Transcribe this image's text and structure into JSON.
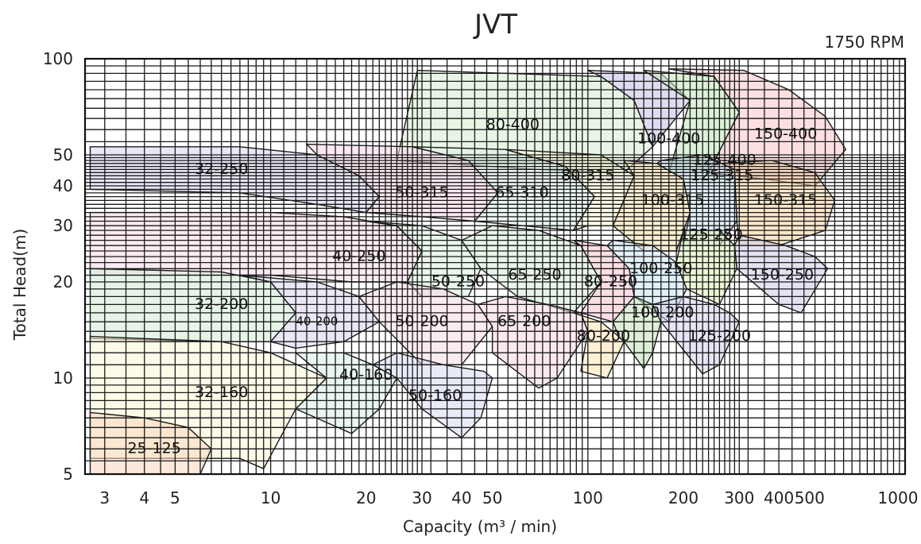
{
  "chart_data": {
    "type": "area",
    "title": "JVT",
    "subtitle": "1750 RPM",
    "xlabel": "Capacity (m³ / min)",
    "ylabel": "Total Head(m)",
    "x_scale": "log",
    "y_scale": "log",
    "xlim": [
      2.6,
      1000
    ],
    "ylim": [
      5,
      100
    ],
    "x_ticks": [
      {
        "value": 3,
        "label": "3"
      },
      {
        "value": 4,
        "label": "4"
      },
      {
        "value": 5,
        "label": "5"
      },
      {
        "value": 10,
        "label": "10"
      },
      {
        "value": 20,
        "label": "20"
      },
      {
        "value": 30,
        "label": "30"
      },
      {
        "value": 40,
        "label": "40"
      },
      {
        "value": 50,
        "label": "50"
      },
      {
        "value": 100,
        "label": "100"
      },
      {
        "value": 200,
        "label": "200"
      },
      {
        "value": 300,
        "label": "300"
      },
      {
        "value": 400,
        "label": "400"
      },
      {
        "value": 500,
        "label": "500"
      },
      {
        "value": 1000,
        "label": "1000"
      }
    ],
    "y_ticks": [
      {
        "value": 5,
        "label": "5"
      },
      {
        "value": 10,
        "label": "10"
      },
      {
        "value": 20,
        "label": "20"
      },
      {
        "value": 30,
        "label": "30"
      },
      {
        "value": 40,
        "label": "40"
      },
      {
        "value": 50,
        "label": "50"
      },
      {
        "value": 100,
        "label": "100"
      }
    ],
    "grid": true,
    "regions": [
      {
        "name": "80-400",
        "color": "#d5ecd0",
        "label_at": [
          58,
          62
        ],
        "polygon": [
          [
            25,
            48
          ],
          [
            29,
            92
          ],
          [
            110,
            88
          ],
          [
            140,
            74
          ],
          [
            160,
            53
          ],
          [
            130,
            44
          ],
          [
            70,
            45
          ]
        ]
      },
      {
        "name": "100-400",
        "color": "#c4bde6",
        "label_at": [
          180,
          56
        ],
        "polygon": [
          [
            100,
            92
          ],
          [
            170,
            90
          ],
          [
            210,
            74
          ],
          [
            160,
            53
          ],
          [
            140,
            74
          ],
          [
            110,
            88
          ]
        ]
      },
      {
        "name": "125-400",
        "color": "#bfe6b8",
        "label_at": [
          270,
          48
        ],
        "polygon": [
          [
            150,
            92
          ],
          [
            250,
            88
          ],
          [
            300,
            68
          ],
          [
            240,
            44
          ],
          [
            180,
            44
          ],
          [
            210,
            74
          ]
        ]
      },
      {
        "name": "150-400",
        "color": "#f9c4c8",
        "label_at": [
          420,
          58
        ],
        "polygon": [
          [
            180,
            93
          ],
          [
            310,
            92
          ],
          [
            430,
            80
          ],
          [
            560,
            66
          ],
          [
            650,
            52
          ],
          [
            520,
            40
          ],
          [
            360,
            42
          ],
          [
            240,
            44
          ],
          [
            300,
            68
          ],
          [
            250,
            88
          ]
        ]
      },
      {
        "name": "32-250",
        "color": "#d5d4ef",
        "label_at": [
          7,
          45
        ],
        "polygon": [
          [
            2.7,
            53
          ],
          [
            8,
            53
          ],
          [
            14,
            50
          ],
          [
            19,
            43
          ],
          [
            22,
            37
          ],
          [
            20,
            33
          ],
          [
            14,
            35
          ],
          [
            8,
            38
          ],
          [
            2.7,
            39
          ]
        ]
      },
      {
        "name": "50-315",
        "color": "#f6d3e6",
        "label_at": [
          30,
          38
        ],
        "polygon": [
          [
            13,
            54
          ],
          [
            28,
            53
          ],
          [
            42,
            48
          ],
          [
            52,
            38
          ],
          [
            44,
            31
          ],
          [
            30,
            32
          ],
          [
            20,
            33
          ],
          [
            22,
            37
          ],
          [
            19,
            43
          ],
          [
            14,
            50
          ]
        ]
      },
      {
        "name": "65-310",
        "color": "#d9efe3",
        "label_at": [
          62,
          38
        ],
        "polygon": [
          [
            28,
            53
          ],
          [
            55,
            52
          ],
          [
            85,
            46
          ],
          [
            105,
            37
          ],
          [
            90,
            29
          ],
          [
            62,
            30
          ],
          [
            44,
            31
          ],
          [
            52,
            38
          ],
          [
            42,
            48
          ]
        ]
      },
      {
        "name": "80-315",
        "color": "#fbf7d4",
        "label_at": [
          100,
          43
        ],
        "polygon": [
          [
            55,
            52
          ],
          [
            110,
            50
          ],
          [
            140,
            43
          ],
          [
            120,
            30
          ],
          [
            100,
            30
          ],
          [
            90,
            29
          ],
          [
            105,
            37
          ],
          [
            85,
            46
          ]
        ]
      },
      {
        "name": "100-315",
        "color": "#f9e2a6",
        "label_at": [
          185,
          36
        ],
        "polygon": [
          [
            130,
            48
          ],
          [
            165,
            47
          ],
          [
            200,
            42
          ],
          [
            210,
            33
          ],
          [
            190,
            25
          ],
          [
            150,
            25
          ],
          [
            120,
            30
          ],
          [
            140,
            43
          ]
        ]
      },
      {
        "name": "125-315",
        "color": "#c8e3f3",
        "label_at": [
          265,
          43
        ],
        "polygon": [
          [
            170,
            48
          ],
          [
            230,
            50
          ],
          [
            290,
            45
          ],
          [
            295,
            31
          ],
          [
            260,
            26
          ],
          [
            200,
            26
          ],
          [
            210,
            33
          ],
          [
            200,
            42
          ],
          [
            165,
            47
          ]
        ]
      },
      {
        "name": "150-315",
        "color": "#f8d29c",
        "label_at": [
          420,
          36
        ],
        "polygon": [
          [
            260,
            47
          ],
          [
            380,
            48
          ],
          [
            520,
            44
          ],
          [
            600,
            36
          ],
          [
            560,
            29
          ],
          [
            400,
            26
          ],
          [
            300,
            26
          ],
          [
            295,
            31
          ],
          [
            290,
            45
          ],
          [
            230,
            50
          ]
        ]
      },
      {
        "name": "40-250",
        "color": "#f6d9e7",
        "label_at": [
          19,
          24
        ],
        "polygon": [
          [
            2.7,
            33
          ],
          [
            10,
            33
          ],
          [
            17,
            32
          ],
          [
            25,
            30
          ],
          [
            30,
            25
          ],
          [
            27,
            20
          ],
          [
            18,
            20
          ],
          [
            10,
            21
          ],
          [
            2.7,
            21
          ]
        ]
      },
      {
        "name": "50-250",
        "color": "#d6eedb",
        "label_at": [
          39,
          20
        ],
        "polygon": [
          [
            20,
            31
          ],
          [
            30,
            30
          ],
          [
            40,
            27
          ],
          [
            46,
            22
          ],
          [
            42,
            18
          ],
          [
            30,
            18
          ],
          [
            27,
            20
          ],
          [
            30,
            25
          ],
          [
            25,
            30
          ]
        ]
      },
      {
        "name": "65-250",
        "color": "#d4ebd4",
        "label_at": [
          68,
          21
        ],
        "polygon": [
          [
            50,
            30
          ],
          [
            70,
            29
          ],
          [
            95,
            26
          ],
          [
            110,
            20
          ],
          [
            90,
            16
          ],
          [
            60,
            18
          ],
          [
            46,
            22
          ],
          [
            40,
            27
          ]
        ]
      },
      {
        "name": "80-250",
        "color": "#f8c3cd",
        "label_at": [
          118,
          20
        ],
        "polygon": [
          [
            90,
            27
          ],
          [
            115,
            26
          ],
          [
            135,
            22
          ],
          [
            140,
            18
          ],
          [
            120,
            15
          ],
          [
            95,
            16
          ],
          [
            110,
            20
          ],
          [
            95,
            26
          ]
        ]
      },
      {
        "name": "100-250",
        "color": "#c9e3f4",
        "label_at": [
          170,
          22
        ],
        "polygon": [
          [
            120,
            27
          ],
          [
            160,
            26
          ],
          [
            190,
            23
          ],
          [
            205,
            19
          ],
          [
            180,
            15
          ],
          [
            140,
            18
          ],
          [
            135,
            22
          ],
          [
            115,
            26
          ]
        ]
      },
      {
        "name": "125-250",
        "color": "#dcefb3",
        "label_at": [
          245,
          28
        ],
        "polygon": [
          [
            200,
            29
          ],
          [
            260,
            29
          ],
          [
            290,
            26
          ],
          [
            295,
            22
          ],
          [
            260,
            17
          ],
          [
            205,
            19
          ],
          [
            190,
            23
          ]
        ]
      },
      {
        "name": "150-250",
        "color": "#cdc9e8",
        "label_at": [
          410,
          21
        ],
        "polygon": [
          [
            300,
            28
          ],
          [
            420,
            26
          ],
          [
            520,
            24
          ],
          [
            570,
            22
          ],
          [
            470,
            16
          ],
          [
            400,
            17
          ],
          [
            295,
            22
          ],
          [
            290,
            26
          ]
        ]
      },
      {
        "name": "32-200",
        "color": "#d2ebd5",
        "label_at": [
          7,
          17
        ],
        "polygon": [
          [
            2.7,
            22
          ],
          [
            7,
            21.5
          ],
          [
            10,
            20
          ],
          [
            12,
            16
          ],
          [
            10,
            13
          ],
          [
            7,
            13
          ],
          [
            2.7,
            13.3
          ]
        ]
      },
      {
        "name": "40-200",
        "color": "#d7d3ee",
        "label_at": [
          14,
          15
        ],
        "polygon": [
          [
            8,
            21
          ],
          [
            14,
            20
          ],
          [
            19,
            18
          ],
          [
            22,
            15
          ],
          [
            17,
            13
          ],
          [
            12,
            12.4
          ],
          [
            10,
            13
          ],
          [
            12,
            16
          ],
          [
            10,
            20
          ]
        ]
      },
      {
        "name": "50-200",
        "color": "#f6d8e6",
        "label_at": [
          30,
          15
        ],
        "polygon": [
          [
            25,
            20
          ],
          [
            35,
            19
          ],
          [
            45,
            17
          ],
          [
            50,
            14.5
          ],
          [
            40,
            11
          ],
          [
            30,
            11
          ],
          [
            22,
            15
          ],
          [
            19,
            18
          ]
        ]
      },
      {
        "name": "65-200",
        "color": "#f7d6e6",
        "label_at": [
          63,
          15
        ],
        "polygon": [
          [
            55,
            18
          ],
          [
            75,
            17
          ],
          [
            95,
            16
          ],
          [
            100,
            14
          ],
          [
            80,
            10
          ],
          [
            70,
            9.3
          ],
          [
            50,
            12
          ],
          [
            50,
            14.5
          ],
          [
            45,
            17
          ]
        ]
      },
      {
        "name": "80-200",
        "color": "#fbe4b3",
        "label_at": [
          112,
          13.5
        ],
        "polygon": [
          [
            90,
            16
          ],
          [
            110,
            15
          ],
          [
            125,
            13.5
          ],
          [
            130,
            13
          ],
          [
            115,
            10
          ],
          [
            95,
            10.5
          ],
          [
            100,
            14
          ],
          [
            95,
            16
          ]
        ]
      },
      {
        "name": "100-200",
        "color": "#c1e2b8",
        "label_at": [
          172,
          16
        ],
        "polygon": [
          [
            140,
            18
          ],
          [
            160,
            17
          ],
          [
            170,
            15
          ],
          [
            160,
            12
          ],
          [
            150,
            10.7
          ],
          [
            130,
            13
          ],
          [
            125,
            13.5
          ],
          [
            120,
            15
          ]
        ]
      },
      {
        "name": "125-200",
        "color": "#d1cfec",
        "label_at": [
          260,
          13.5
        ],
        "polygon": [
          [
            200,
            18
          ],
          [
            250,
            17
          ],
          [
            280,
            16
          ],
          [
            300,
            15
          ],
          [
            260,
            11
          ],
          [
            230,
            10.3
          ],
          [
            170,
            15
          ],
          [
            160,
            17
          ]
        ]
      },
      {
        "name": "32-160",
        "color": "#fbf6d4",
        "label_at": [
          7,
          9
        ],
        "polygon": [
          [
            2.7,
            13.5
          ],
          [
            7,
            13
          ],
          [
            10,
            12
          ],
          [
            15,
            10
          ],
          [
            12,
            8
          ],
          [
            9.5,
            5.2
          ],
          [
            8,
            5.6
          ],
          [
            2.7,
            5.6
          ]
        ]
      },
      {
        "name": "40-160",
        "color": "#d5ede6",
        "label_at": [
          20,
          10.2
        ],
        "polygon": [
          [
            12,
            12
          ],
          [
            17,
            12
          ],
          [
            21,
            11
          ],
          [
            25,
            10
          ],
          [
            22,
            8
          ],
          [
            18,
            6.7
          ],
          [
            12,
            8
          ],
          [
            15,
            10
          ]
        ]
      },
      {
        "name": "50-160",
        "color": "#d6d8f1",
        "label_at": [
          33,
          8.8
        ],
        "polygon": [
          [
            25,
            12
          ],
          [
            35,
            11
          ],
          [
            47,
            10.5
          ],
          [
            50,
            10
          ],
          [
            46,
            7.5
          ],
          [
            40,
            6.5
          ],
          [
            30,
            8
          ],
          [
            25,
            10
          ],
          [
            21,
            11
          ]
        ]
      },
      {
        "name": "25-125",
        "color": "#fad7be",
        "label_at": [
          4.3,
          6
        ],
        "polygon": [
          [
            2.7,
            7.8
          ],
          [
            4,
            7.5
          ],
          [
            5.5,
            7.0
          ],
          [
            6.5,
            6.0
          ],
          [
            6,
            5.0
          ],
          [
            2.7,
            5.0
          ]
        ]
      }
    ]
  }
}
